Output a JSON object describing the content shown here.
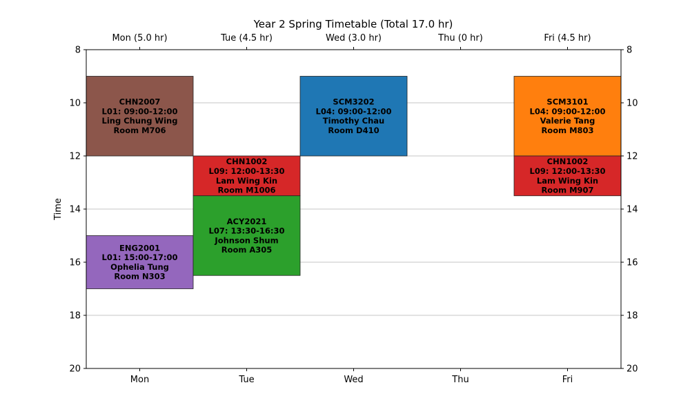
{
  "chart_data": {
    "type": "timetable",
    "title": "Year 2 Spring Timetable (Total 17.0 hr)",
    "ylabel": "Time",
    "ylim": [
      8,
      20
    ],
    "y_inverted": true,
    "yticks": [
      8,
      10,
      12,
      14,
      16,
      18,
      20
    ],
    "grid": "horizontal",
    "days": [
      "Mon",
      "Tue",
      "Wed",
      "Thu",
      "Fri"
    ],
    "top_labels": [
      "Mon (5.0 hr)",
      "Tue (4.5 hr)",
      "Wed (3.0 hr)",
      "Thu (0 hr)",
      "Fri (4.5 hr)"
    ],
    "blocks": [
      {
        "day": 0,
        "start": 9.0,
        "end": 12.0,
        "color": "#8c564b",
        "lines": [
          "CHN2007",
          "L01: 09:00-12:00",
          "Ling Chung Wing",
          "Room M706"
        ]
      },
      {
        "day": 0,
        "start": 15.0,
        "end": 17.0,
        "color": "#9467bd",
        "lines": [
          "ENG2001",
          "L01: 15:00-17:00",
          "Ophelia Tung",
          "Room N303"
        ]
      },
      {
        "day": 1,
        "start": 12.0,
        "end": 13.5,
        "color": "#d62728",
        "lines": [
          "CHN1002",
          "L09: 12:00-13:30",
          "Lam Wing Kin",
          "Room M1006"
        ]
      },
      {
        "day": 1,
        "start": 13.5,
        "end": 16.5,
        "color": "#2ca02c",
        "lines": [
          "ACY2021",
          "L07: 13:30-16:30",
          "Johnson Shum",
          "Room A305"
        ]
      },
      {
        "day": 2,
        "start": 9.0,
        "end": 12.0,
        "color": "#1f77b4",
        "lines": [
          "SCM3202",
          "L04: 09:00-12:00",
          "Timothy Chau",
          "Room D410"
        ]
      },
      {
        "day": 4,
        "start": 9.0,
        "end": 12.0,
        "color": "#ff7f0e",
        "lines": [
          "SCM3101",
          "L04: 09:00-12:00",
          "Valerie Tang",
          "Room M803"
        ]
      },
      {
        "day": 4,
        "start": 12.0,
        "end": 13.5,
        "color": "#d62728",
        "lines": [
          "CHN1002",
          "L09: 12:00-13:30",
          "Lam Wing Kin",
          "Room M907"
        ]
      }
    ]
  }
}
